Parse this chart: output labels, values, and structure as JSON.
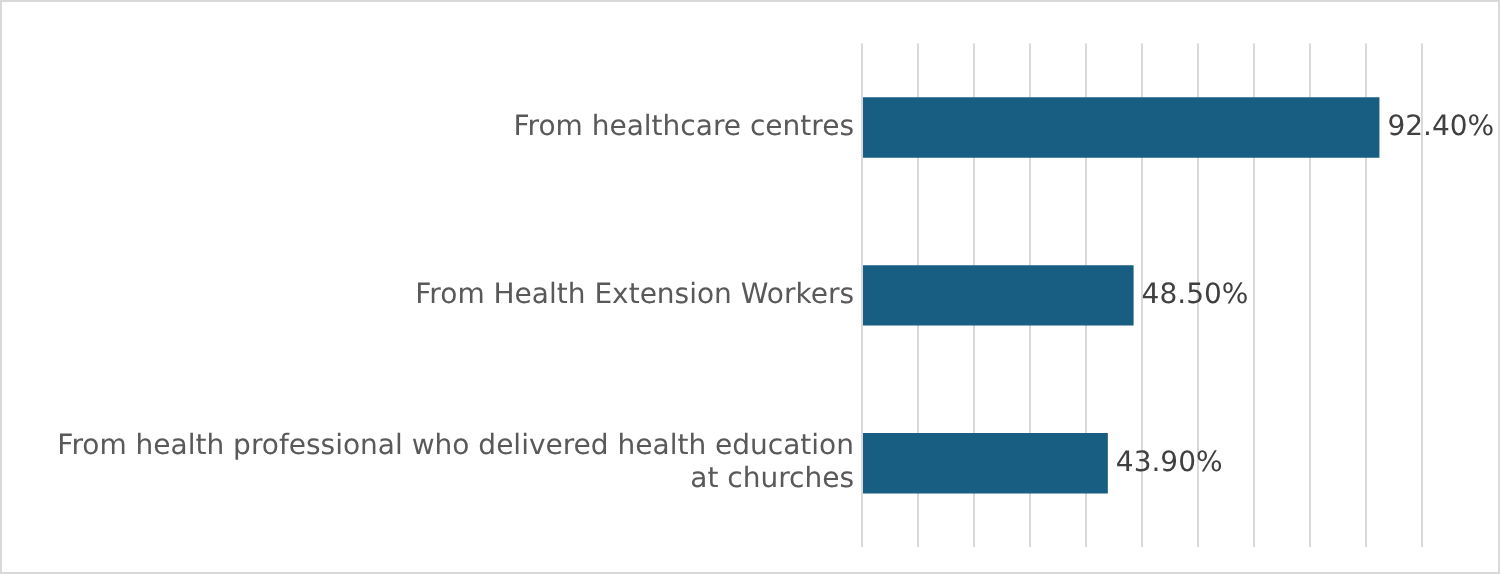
{
  "chart_data": {
    "type": "bar",
    "orientation": "horizontal",
    "categories": [
      "From healthcare centres",
      "From Health Extension Workers",
      "From health professional who delivered health education\nat churches"
    ],
    "values": [
      92.4,
      48.5,
      43.9
    ],
    "value_labels": [
      "92.40%",
      "48.50%",
      "43.90%"
    ],
    "color": "#175e82",
    "xlim": [
      0,
      100
    ],
    "xticks": [
      {
        "value": 0,
        "label": null
      },
      {
        "value": 10,
        "label": null
      },
      {
        "value": 20,
        "label": null
      },
      {
        "value": 30,
        "label": null
      },
      {
        "value": 40,
        "label": null
      },
      {
        "value": 50,
        "label": null
      },
      {
        "value": 60,
        "label": null
      },
      {
        "value": 70,
        "label": null
      },
      {
        "value": 80,
        "label": null
      },
      {
        "value": 90,
        "label": null
      },
      {
        "value": 100,
        "label": null
      }
    ],
    "tick_labels": "y",
    "grid": "x",
    "legend": false
  }
}
